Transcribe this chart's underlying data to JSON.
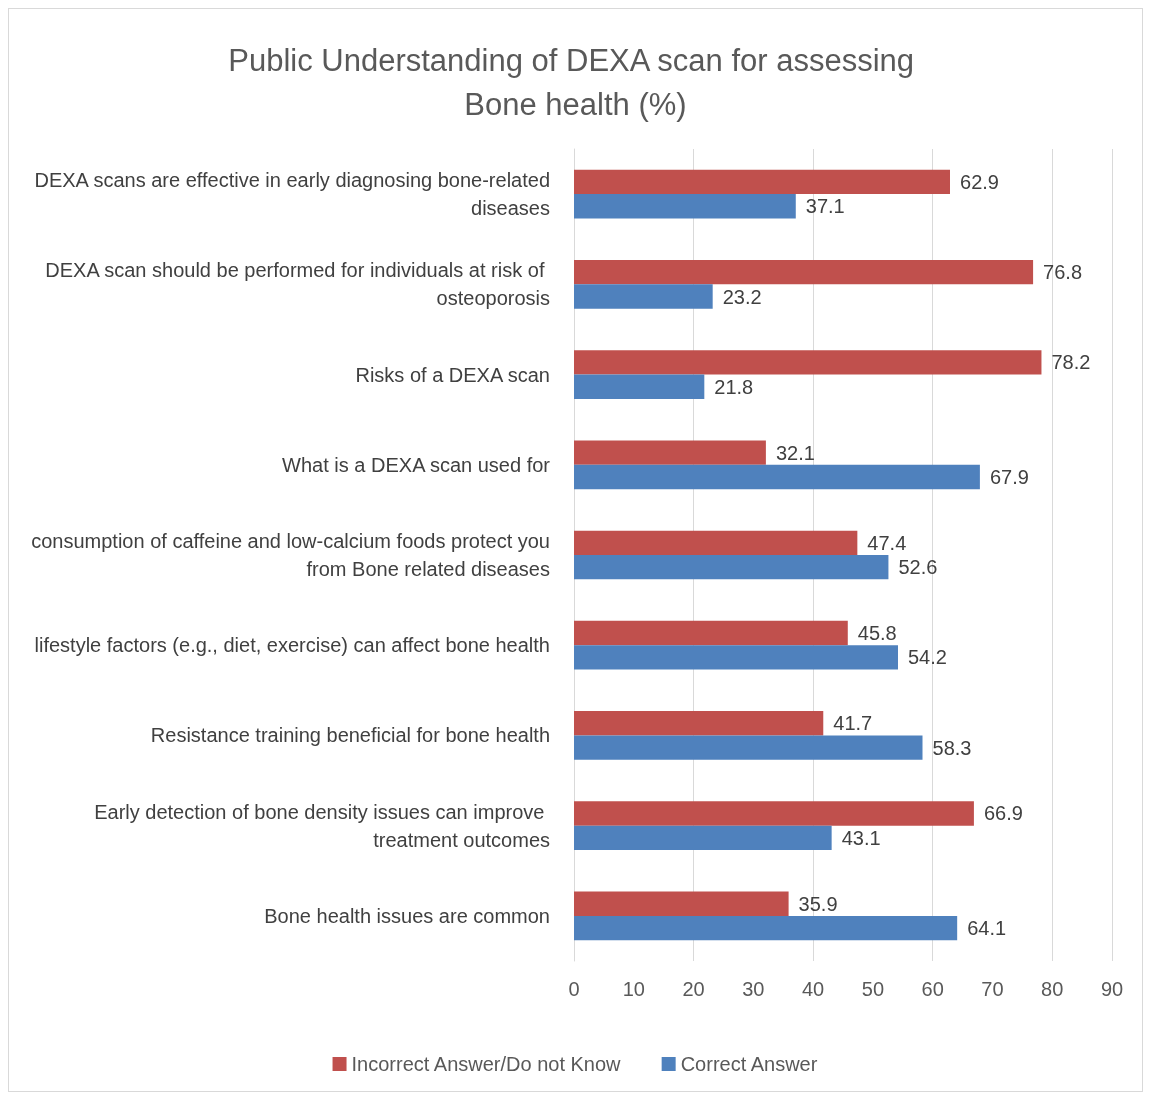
{
  "chart_data": {
    "type": "bar",
    "orientation": "horizontal",
    "title": "Public Understanding of DEXA scan for assessing Bone health (%)",
    "categories": [
      "DEXA scans are effective in early diagnosing bone-related diseases",
      "DEXA scan should be performed for individuals at risk of osteoporosis",
      "Risks of a DEXA scan",
      "What is a DEXA scan used for",
      "consumption of caffeine and low-calcium foods protect you from Bone related diseases",
      "lifestyle factors (e.g., diet, exercise) can affect bone health",
      "Resistance training beneficial for bone health",
      "Early detection of bone density issues can improve treatment outcomes",
      "Bone health issues are common"
    ],
    "series": [
      {
        "name": "Incorrect Answer/Do not Know",
        "color": "#c0504d",
        "values": [
          62.9,
          76.8,
          78.2,
          32.1,
          47.4,
          45.8,
          41.7,
          66.9,
          35.9
        ]
      },
      {
        "name": "Correct Answer",
        "color": "#4f81bd",
        "values": [
          37.1,
          23.2,
          21.8,
          67.9,
          52.6,
          54.2,
          58.3,
          43.1,
          64.1
        ]
      }
    ],
    "xlim": [
      0,
      90
    ],
    "xticks": [
      0,
      10,
      20,
      30,
      40,
      50,
      60,
      70,
      80,
      90
    ],
    "grid": "x",
    "legend": "bottom",
    "data_labels": true
  }
}
